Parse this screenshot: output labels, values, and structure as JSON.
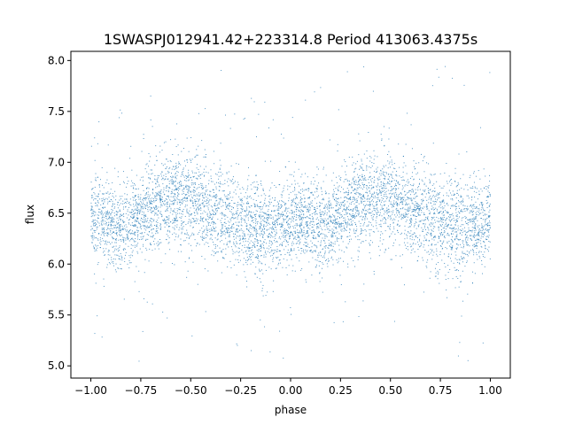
{
  "chart_data": {
    "type": "scatter",
    "title": "1SWASPJ012941.42+223314.8 Period 413063.4375s",
    "xlabel": "phase",
    "ylabel": "flux",
    "xlim": [
      -1.1,
      1.1
    ],
    "ylim": [
      4.88,
      8.09
    ],
    "xticks": [
      -1.0,
      -0.75,
      -0.5,
      -0.25,
      0.0,
      0.25,
      0.5,
      0.75,
      1.0
    ],
    "xtick_labels": [
      "−1.00",
      "−0.75",
      "−0.50",
      "−0.25",
      "0.00",
      "0.25",
      "0.50",
      "0.75",
      "1.00"
    ],
    "yticks": [
      5.0,
      5.5,
      6.0,
      6.5,
      7.0,
      7.5,
      8.0
    ],
    "ytick_labels": [
      "5.0",
      "5.5",
      "6.0",
      "6.5",
      "7.0",
      "7.5",
      "8.0"
    ],
    "grid": false,
    "legend": "none",
    "marker_color": "#1f77b4",
    "series": [
      {
        "phase_profile": {
          "x": [
            0.0,
            0.05,
            0.1,
            0.15,
            0.2,
            0.25,
            0.3,
            0.35,
            0.4,
            0.45,
            0.5,
            0.55,
            0.6,
            0.65,
            0.7,
            0.75,
            0.8,
            0.85,
            0.9,
            0.95,
            1.0
          ],
          "median_flux": [
            6.42,
            6.45,
            6.42,
            6.36,
            6.38,
            6.48,
            6.58,
            6.62,
            6.64,
            6.66,
            6.64,
            6.58,
            6.5,
            6.52,
            6.48,
            6.4,
            6.35,
            6.34,
            6.36,
            6.38,
            6.42
          ],
          "scatter_sigma": [
            0.2,
            0.2,
            0.2,
            0.22,
            0.2,
            0.2,
            0.22,
            0.22,
            0.22,
            0.22,
            0.22,
            0.22,
            0.22,
            0.24,
            0.22,
            0.22,
            0.24,
            0.24,
            0.2,
            0.2,
            0.2
          ]
        },
        "x_range": [
          -1.0,
          1.0
        ],
        "y_extent": [
          5.02,
          7.95
        ]
      }
    ]
  }
}
